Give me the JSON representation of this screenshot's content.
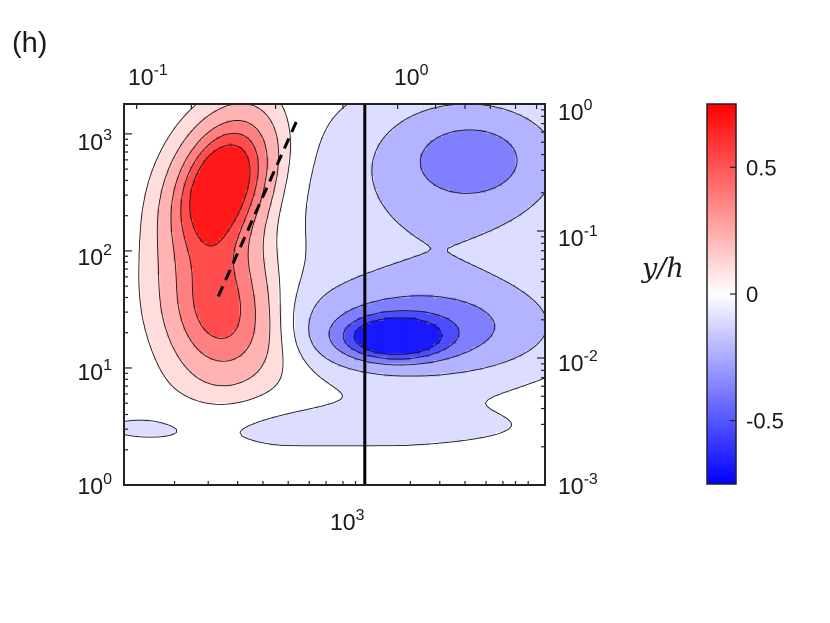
{
  "panel_label": "(h)",
  "chart_data": {
    "type": "heatmap",
    "subtype": "filled-contour",
    "axes": {
      "x_bottom": {
        "scale": "log",
        "tick_labels": [
          {
            "base": "10",
            "exp": "3"
          }
        ]
      },
      "x_top": {
        "scale": "log",
        "tick_labels": [
          {
            "base": "10",
            "exp": "-1"
          },
          {
            "base": "10",
            "exp": "0"
          }
        ]
      },
      "y_left": {
        "scale": "log",
        "lim": [
          1,
          1800
        ],
        "tick_labels": [
          {
            "value": 1,
            "base": "10",
            "exp": "0"
          },
          {
            "value": 10,
            "base": "10",
            "exp": "1"
          },
          {
            "value": 100,
            "base": "10",
            "exp": "2"
          },
          {
            "value": 1000,
            "base": "10",
            "exp": "3"
          }
        ]
      },
      "y_right": {
        "scale": "log",
        "label": "y/h",
        "tick_labels": [
          {
            "base": "10",
            "exp": "-3"
          },
          {
            "base": "10",
            "exp": "-2"
          },
          {
            "base": "10",
            "exp": "-1"
          },
          {
            "base": "10",
            "exp": "0"
          }
        ]
      }
    },
    "colorbar": {
      "range": [
        -0.75,
        0.75
      ],
      "colors": {
        "low": "#0000ff",
        "mid": "#ffffff",
        "high": "#ff0000"
      },
      "ticks": [
        {
          "value": 0.5,
          "label": "0.5"
        },
        {
          "value": 0,
          "label": "0"
        },
        {
          "value": -0.5,
          "label": "-0.5"
        }
      ]
    },
    "contour_levels": [
      -0.6,
      -0.45,
      -0.3,
      -0.15,
      -0.05,
      0.05,
      0.15,
      0.3,
      0.45,
      0.6
    ],
    "lines": [
      {
        "kind": "vertical-solid",
        "x_value": 1150,
        "color": "#000000"
      },
      {
        "kind": "dashed-ridge",
        "color": "#000000"
      }
    ]
  }
}
